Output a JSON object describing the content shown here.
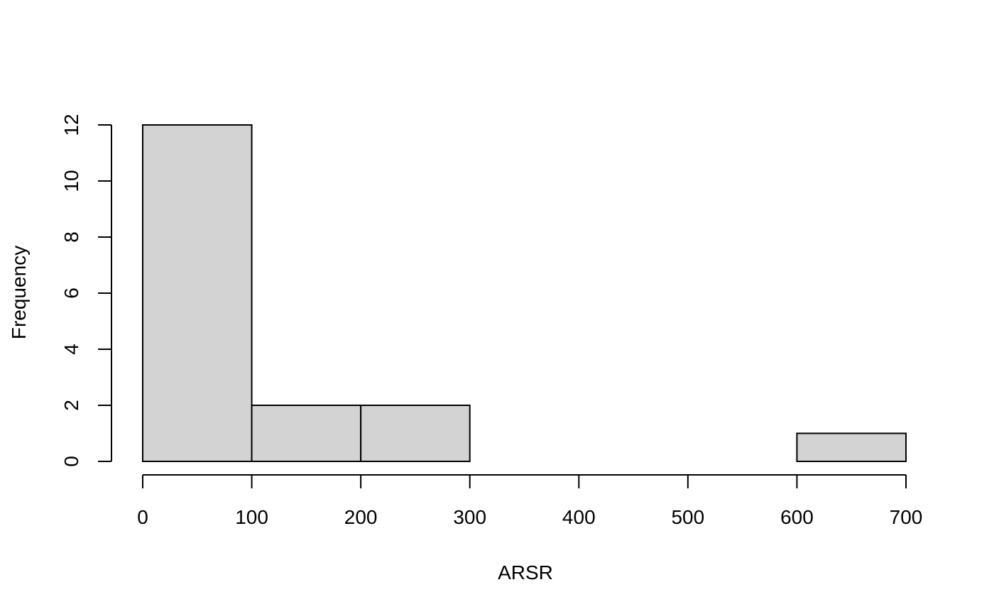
{
  "chart_data": {
    "type": "bar",
    "title": "",
    "xlabel": "ARSR",
    "ylabel": "Frequency",
    "bin_edges": [
      0,
      100,
      200,
      300,
      400,
      500,
      600,
      700
    ],
    "values": [
      12,
      2,
      2,
      0,
      0,
      0,
      1
    ],
    "xlim": [
      0,
      700
    ],
    "ylim": [
      0,
      12
    ],
    "x_ticks": [
      0,
      100,
      200,
      300,
      400,
      500,
      600,
      700
    ],
    "x_tick_labels": [
      "0",
      "100",
      "200",
      "300",
      "400",
      "500",
      "600",
      "700"
    ],
    "y_ticks": [
      0,
      2,
      4,
      6,
      8,
      10,
      12
    ],
    "y_tick_labels": [
      "0",
      "2",
      "4",
      "6",
      "8",
      "10",
      "12"
    ],
    "grid": false,
    "bar_fill": "#d3d3d3",
    "bar_stroke": "#000000"
  }
}
